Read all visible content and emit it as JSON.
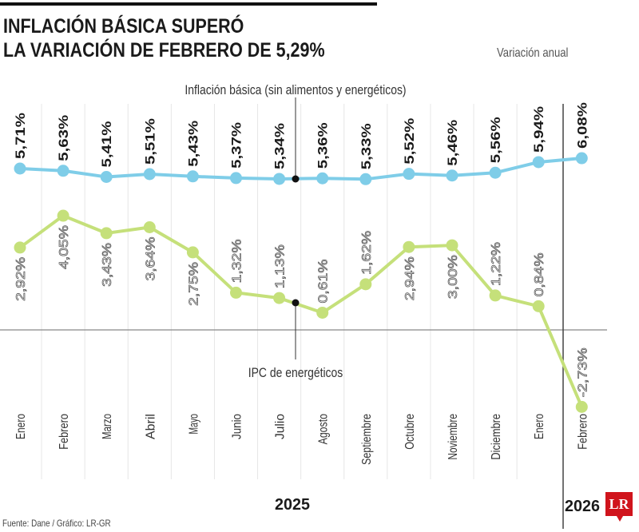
{
  "header": {
    "title_line1": "INFLACIÓN BÁSICA SUPERÓ",
    "title_line2": "LA VARIACIÓN DE FEBRERO DE 5,29%",
    "subtitle": "Variación anual"
  },
  "footer": {
    "source": "Fuente: Dane / Gráfico: LR-GR",
    "logo": "LR"
  },
  "colors": {
    "core": "#7fcde8",
    "energy": "#c5e07a",
    "grid": "#e6e6e6"
  },
  "chart_data": {
    "type": "line",
    "categories": [
      "Enero",
      "Febrero",
      "Marzo",
      "Abril",
      "Mayo",
      "Junio",
      "Julio",
      "Agosto",
      "Septiembre",
      "Octubre",
      "Noviembre",
      "Diciembre",
      "Enero",
      "Febrero"
    ],
    "year_groups": [
      {
        "label": "2025"
      },
      {
        "label": "2026"
      }
    ],
    "series": [
      {
        "name": "Inflación básica (sin alimentos y energéticos)",
        "labels": [
          "5,71%",
          "5,63%",
          "5,41%",
          "5,51%",
          "5,43%",
          "5,37%",
          "5,34%",
          "5,36%",
          "5,33%",
          "5,52%",
          "5,46%",
          "5,56%",
          "5,94%",
          "6,08%"
        ],
        "values": [
          5.71,
          5.63,
          5.41,
          5.51,
          5.43,
          5.37,
          5.34,
          5.36,
          5.33,
          5.52,
          5.46,
          5.56,
          5.94,
          6.08
        ]
      },
      {
        "name": "IPC de energéticos",
        "labels": [
          "2,92%",
          "4,05%",
          "3,43%",
          "3,64%",
          "2,75%",
          "1,32%",
          "1,13%",
          "0,61%",
          "1,62%",
          "2,94%",
          "3,00%",
          "1,22%",
          "0,84%",
          "-2,73%"
        ],
        "values": [
          2.92,
          4.05,
          3.43,
          3.64,
          2.75,
          1.32,
          1.13,
          0.61,
          1.62,
          2.94,
          3.0,
          1.22,
          0.84,
          -2.73
        ]
      }
    ],
    "ylabel": "Variación anual",
    "grid": true
  }
}
